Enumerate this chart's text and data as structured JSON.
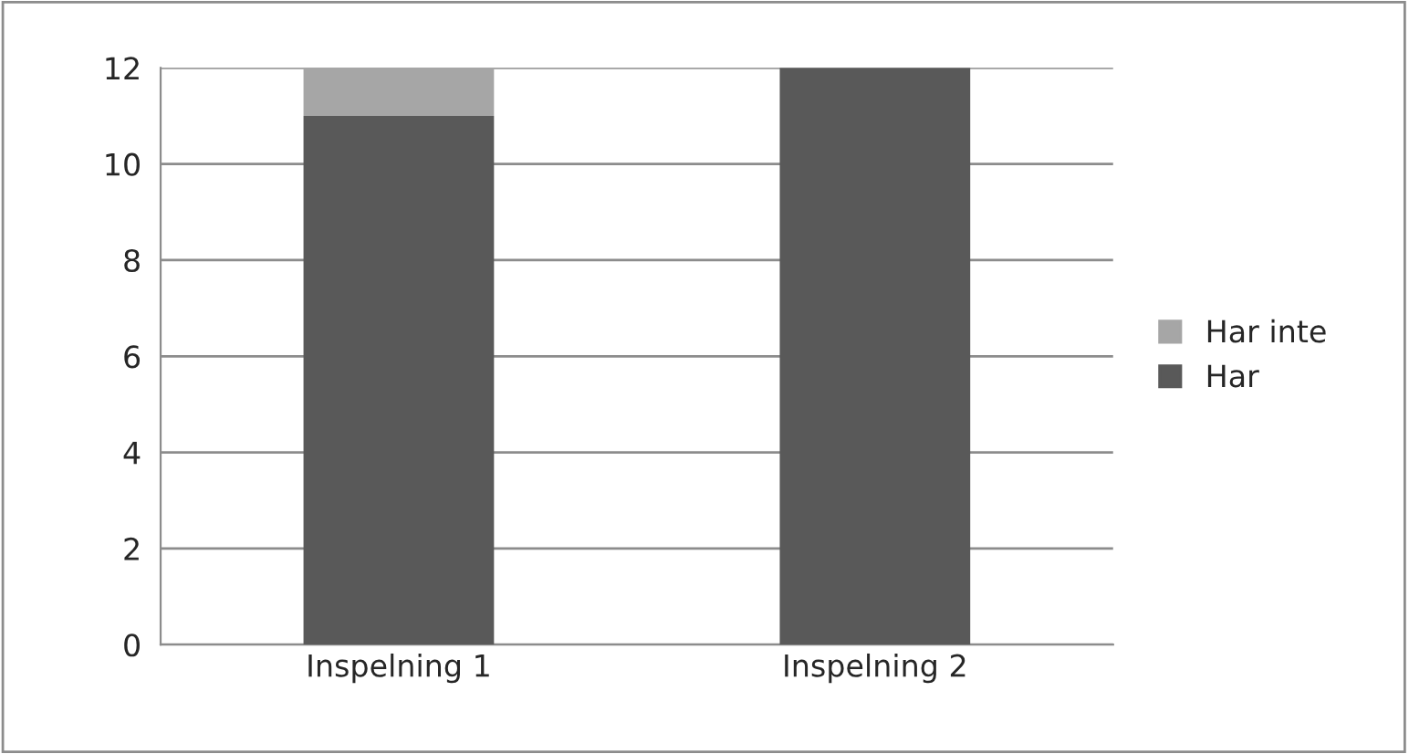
{
  "chart_data": {
    "type": "bar",
    "stacked": true,
    "categories": [
      "Inspelning 1",
      "Inspelning 2"
    ],
    "series": [
      {
        "name": "Har",
        "color": "#595959",
        "values": [
          11,
          12
        ]
      },
      {
        "name": "Har inte",
        "color": "#a6a6a6",
        "values": [
          1,
          0
        ]
      }
    ],
    "ylim": [
      0,
      12
    ],
    "yticks": [
      0,
      2,
      4,
      6,
      8,
      10,
      12
    ],
    "grid": "y",
    "legend": "right"
  }
}
